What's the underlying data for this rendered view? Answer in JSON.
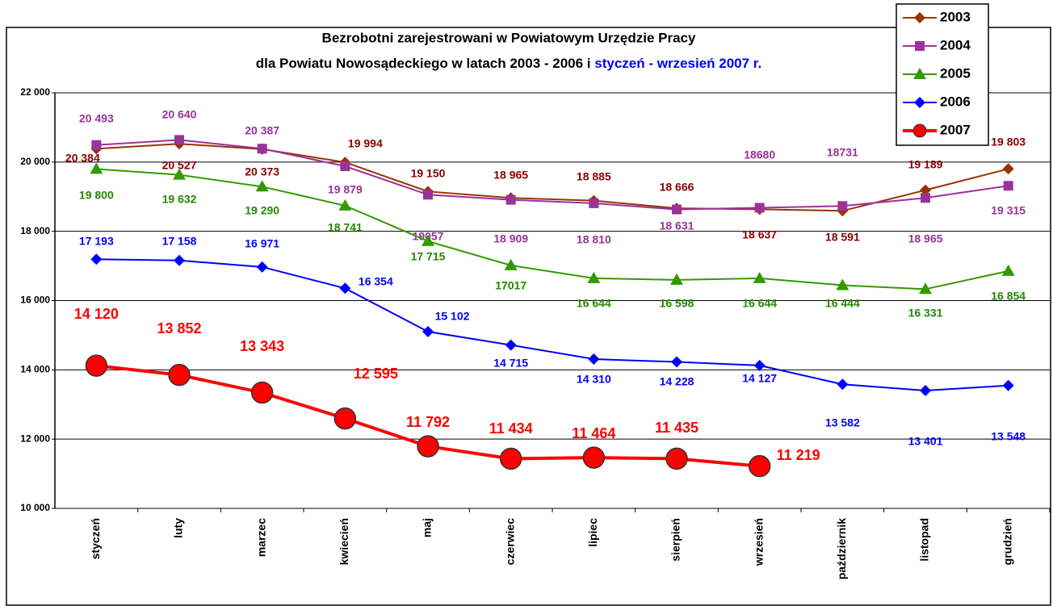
{
  "chart_data": {
    "type": "line",
    "title": "Bezrobotni zarejestrowani w Powiatowym Urzędzie Pracy",
    "subtitle": "dla Powiatu Nowosądeckiego w latach 2003 - 2006 i ",
    "subtitle_highlight": "styczeń - wrzesień 2007 r.",
    "categories": [
      "styczeń",
      "luty",
      "marzec",
      "kwiecień",
      "maj",
      "czerwiec",
      "lipiec",
      "sierpień",
      "wrzesień",
      "październik",
      "listopad",
      "grudzień"
    ],
    "ylim": [
      10000,
      22000
    ],
    "yticks": [
      {
        "value": 10000,
        "label": "10 000"
      },
      {
        "value": 12000,
        "label": "12 000"
      },
      {
        "value": 14000,
        "label": "14 000"
      },
      {
        "value": 16000,
        "label": "16 000"
      },
      {
        "value": 18000,
        "label": "18 000"
      },
      {
        "value": 20000,
        "label": "20 000"
      },
      {
        "value": 22000,
        "label": "22 000"
      }
    ],
    "grid": true,
    "legend": "top-right",
    "series": [
      {
        "name": "2003",
        "color": "#993300",
        "label_color": "#880000",
        "marker": "diamond",
        "values": [
          20384,
          20527,
          20373,
          19994,
          19150,
          18965,
          18885,
          18666,
          18637,
          18591,
          19189,
          19803
        ],
        "value_labels": [
          "20 384",
          "20 527",
          "20 373",
          "19 994",
          "19 150",
          "18 965",
          "18 885",
          "18 666",
          "18 637",
          "18 591",
          "19 189",
          "19 803"
        ]
      },
      {
        "name": "2004",
        "color": "#993399",
        "label_color": "#993399",
        "marker": "square",
        "values": [
          20493,
          20640,
          20387,
          19879,
          19057,
          18909,
          18810,
          18631,
          18680,
          18731,
          18965,
          19315
        ],
        "value_labels": [
          "20 493",
          "20 640",
          "20 387",
          "19 879",
          "19057",
          "18 909",
          "18 810",
          "18 631",
          "18680",
          "18731",
          "18 965",
          "19 315"
        ]
      },
      {
        "name": "2005",
        "color": "#339900",
        "label_color": "#228800",
        "marker": "triangle",
        "values": [
          19800,
          19632,
          19290,
          18741,
          17715,
          17017,
          16644,
          16598,
          16644,
          16444,
          16331,
          16854
        ],
        "value_labels": [
          "19 800",
          "19 632",
          "19 290",
          "18 741",
          "17 715",
          "17017",
          "16 644",
          "16 598",
          "16 644",
          "16 444",
          "16 331",
          "16 854"
        ]
      },
      {
        "name": "2006",
        "color": "#0000ff",
        "label_color": "#0000ff",
        "marker": "diamond",
        "values": [
          17193,
          17158,
          16971,
          16354,
          15102,
          14715,
          14310,
          14228,
          14127,
          13582,
          13401,
          13548
        ],
        "value_labels": [
          "17 193",
          "17 158",
          "16 971",
          "16 354",
          "15 102",
          "14 715",
          "14 310",
          "14 228",
          "14 127",
          "13 582",
          "13 401",
          "13 548"
        ]
      },
      {
        "name": "2007",
        "color": "#ff0000",
        "label_color": "#ff0000",
        "marker": "circle",
        "values": [
          14120,
          13852,
          13343,
          12595,
          11792,
          11434,
          11464,
          11435,
          11219,
          null,
          null,
          null
        ],
        "value_labels": [
          "14 120",
          "13 852",
          "13 343",
          "12 595",
          "11 792",
          "11 434",
          "11 464",
          "11 435",
          "11 219",
          null,
          null,
          null
        ]
      }
    ]
  }
}
